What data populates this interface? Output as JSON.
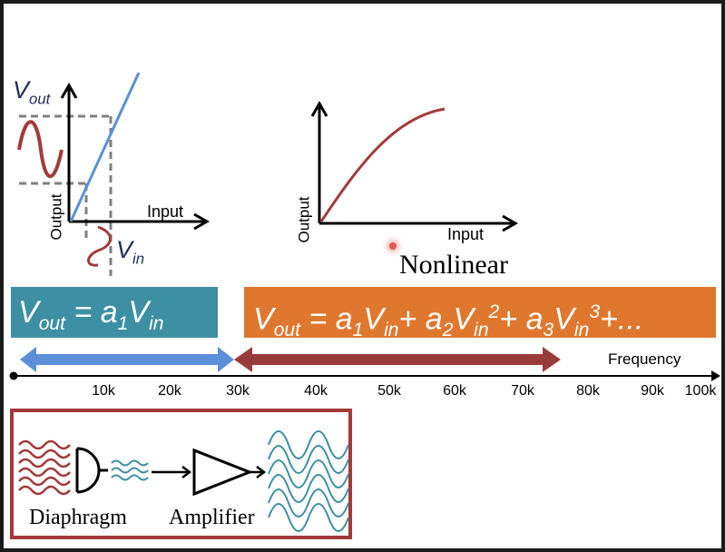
{
  "linear_plot": {
    "vout_label": {
      "main": "V",
      "sub": "out"
    },
    "vin_label": {
      "main": "V",
      "sub": "in"
    },
    "x_axis_label": "Input",
    "y_axis_label": "Output"
  },
  "nonlinear_plot": {
    "x_axis_label": "Input",
    "y_axis_label": "Output",
    "caption": "Nonlinear"
  },
  "linear_equation": {
    "text": "V_out = a_1 V_in",
    "parts": {
      "v": "V",
      "out": "out",
      "eq": " = a",
      "one": "1",
      "v2": "V",
      "in": "in"
    },
    "color": "#3d8fa3"
  },
  "nonlinear_equation": {
    "text": "V_out = a_1 V_in + a_2 V_in^2 + a_3 V_in^3 + ...",
    "parts": {
      "v": "V",
      "out": "out",
      "eq": " = a",
      "one": "1",
      "v1": "V",
      "in1": "in",
      "plus_a": "+ a",
      "two": "2",
      "v2": "V",
      "in2": "in",
      "sq": "2",
      "plus_a3": "+ a",
      "three": "3",
      "v3": "V",
      "in3": "in",
      "cube": "3",
      "tail": "+..."
    },
    "color": "#e0772e"
  },
  "frequency_axis": {
    "label": "Frequency",
    "ticks": [
      "10k",
      "20k",
      "30k",
      "40k",
      "50k",
      "60k",
      "70k",
      "80k",
      "90k",
      "100k"
    ],
    "linear_range_color": "#5b8fd9",
    "nonlinear_range_color": "#9a3b3b"
  },
  "signal_chain": {
    "diaphragm_label": "Diaphragm",
    "amplifier_label": "Amplifier",
    "border_color": "#a33a3a"
  }
}
